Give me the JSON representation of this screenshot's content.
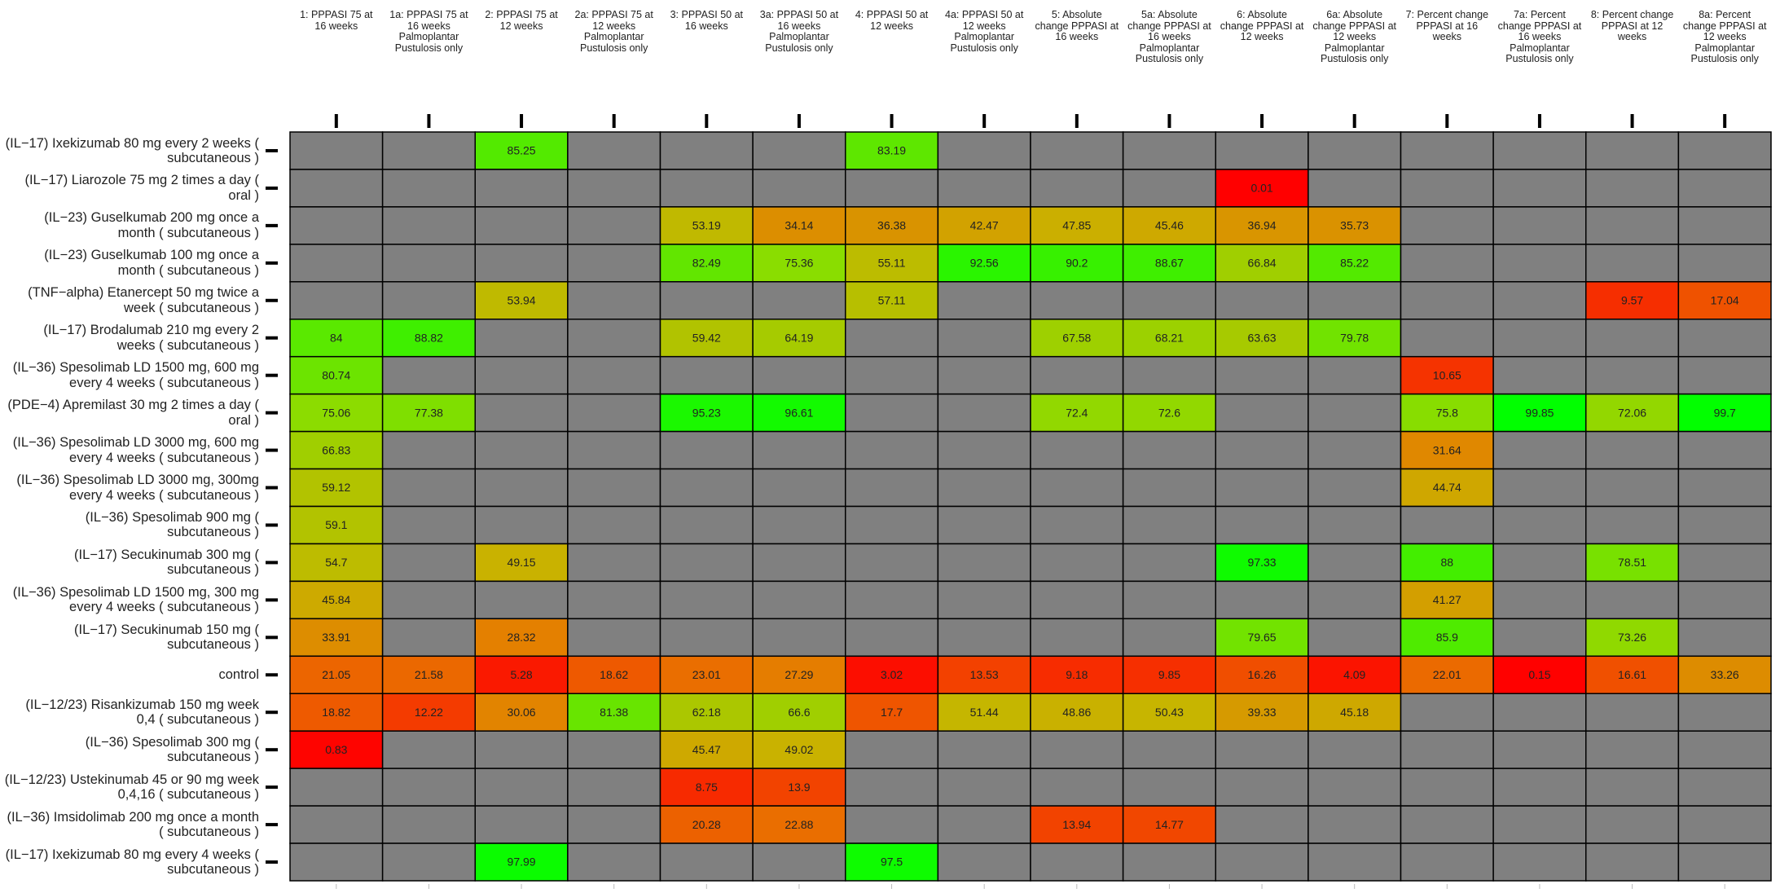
{
  "chart_data": {
    "type": "heatmap",
    "x": [
      "1: PPPASI 75 at 16 weeks",
      "1a: PPPASI 75 at 16 weeks Palmoplantar Pustulosis only",
      "2: PPPASI 75 at 12 weeks",
      "2a: PPPASI 75 at 12 weeks Palmoplantar Pustulosis only",
      "3: PPPASI 50 at 16 weeks",
      "3a: PPPASI 50 at 16 weeks Palmoplantar Pustulosis only",
      "4: PPPASI 50 at 12 weeks",
      "4a: PPPASI 50 at 12 weeks Palmoplantar Pustulosis only",
      "5: Absolute change PPPASI at 16 weeks",
      "5a: Absolute change PPPASI at 16 weeks Palmoplantar Pustulosis only",
      "6: Absolute change PPPASI at 12 weeks",
      "6a: Absolute change PPPASI at 12 weeks Palmoplantar Pustulosis only",
      "7: Percent change PPPASI at 16 weeks",
      "7a: Percent change PPPASI at 16 weeks Palmoplantar Pustulosis only",
      "8: Percent change PPPASI at 12 weeks",
      "8a: Percent change PPPASI at 12 weeks Palmoplantar Pustulosis only"
    ],
    "y": [
      "(IL−17) Ixekizumab 80 mg every 2 weeks ( subcutaneous )",
      "(IL−17) Liarozole 75 mg 2 times a day ( oral )",
      "(IL−23) Guselkumab 200 mg once a month ( subcutaneous )",
      "(IL−23) Guselkumab 100 mg once a month ( subcutaneous )",
      "(TNF−alpha) Etanercept 50 mg twice a week ( subcutaneous )",
      "(IL−17) Brodalumab 210 mg every 2 weeks ( subcutaneous )",
      "(IL−36) Spesolimab LD 1500 mg, 600 mg every 4 weeks ( subcutaneous )",
      "(PDE−4) Apremilast 30 mg 2 times a day ( oral )",
      "(IL−36) Spesolimab LD 3000 mg, 600 mg every 4 weeks ( subcutaneous )",
      "(IL−36) Spesolimab LD 3000 mg, 300mg every 4 weeks ( subcutaneous )",
      "(IL−36) Spesolimab 900 mg ( subcutaneous )",
      "(IL−17) Secukinumab 300 mg ( subcutaneous )",
      "(IL−36) Spesolimab LD 1500 mg, 300 mg every 4 weeks ( subcutaneous )",
      "(IL−17) Secukinumab 150 mg ( subcutaneous )",
      "control",
      "(IL−12/23) Risankizumab 150 mg week 0,4 ( subcutaneous )",
      "(IL−36) Spesolimab 300 mg ( subcutaneous )",
      "(IL−12/23) Ustekinumab 45 or 90 mg week 0,4,16 ( subcutaneous )",
      "(IL−36) Imsidolimab 200 mg once a month ( subcutaneous )",
      "(IL−17) Ixekizumab 80 mg every 4 weeks ( subcutaneous )"
    ],
    "values": [
      [
        null,
        null,
        85.25,
        null,
        null,
        null,
        83.19,
        null,
        null,
        null,
        null,
        null,
        null,
        null,
        null,
        null
      ],
      [
        null,
        null,
        null,
        null,
        null,
        null,
        null,
        null,
        null,
        null,
        0.01,
        null,
        null,
        null,
        null,
        null
      ],
      [
        null,
        null,
        null,
        null,
        53.19,
        34.14,
        36.38,
        42.47,
        47.85,
        45.46,
        36.94,
        35.73,
        null,
        null,
        null,
        null
      ],
      [
        null,
        null,
        null,
        null,
        82.49,
        75.36,
        55.11,
        92.56,
        90.2,
        88.67,
        66.84,
        85.22,
        null,
        null,
        null,
        null
      ],
      [
        null,
        null,
        53.94,
        null,
        null,
        null,
        57.11,
        null,
        null,
        null,
        null,
        null,
        null,
        null,
        9.57,
        17.04
      ],
      [
        84,
        88.82,
        null,
        null,
        59.42,
        64.19,
        null,
        null,
        67.58,
        68.21,
        63.63,
        79.78,
        null,
        null,
        null,
        null
      ],
      [
        80.74,
        null,
        null,
        null,
        null,
        null,
        null,
        null,
        null,
        null,
        null,
        null,
        10.65,
        null,
        null,
        null
      ],
      [
        75.06,
        77.38,
        null,
        null,
        95.23,
        96.61,
        null,
        null,
        72.4,
        72.6,
        null,
        null,
        75.8,
        99.85,
        72.06,
        99.7
      ],
      [
        66.83,
        null,
        null,
        null,
        null,
        null,
        null,
        null,
        null,
        null,
        null,
        null,
        31.64,
        null,
        null,
        null
      ],
      [
        59.12,
        null,
        null,
        null,
        null,
        null,
        null,
        null,
        null,
        null,
        null,
        null,
        44.74,
        null,
        null,
        null
      ],
      [
        59.1,
        null,
        null,
        null,
        null,
        null,
        null,
        null,
        null,
        null,
        null,
        null,
        null,
        null,
        null,
        null
      ],
      [
        54.7,
        null,
        49.15,
        null,
        null,
        null,
        null,
        null,
        null,
        null,
        97.33,
        null,
        88,
        null,
        78.51,
        null
      ],
      [
        45.84,
        null,
        null,
        null,
        null,
        null,
        null,
        null,
        null,
        null,
        null,
        null,
        41.27,
        null,
        null,
        null
      ],
      [
        33.91,
        null,
        28.32,
        null,
        null,
        null,
        null,
        null,
        null,
        null,
        79.65,
        null,
        85.9,
        null,
        73.26,
        null
      ],
      [
        21.05,
        21.58,
        5.28,
        18.62,
        23.01,
        27.29,
        3.02,
        13.53,
        9.18,
        9.85,
        16.26,
        4.09,
        22.01,
        0.15,
        16.61,
        33.26
      ],
      [
        18.82,
        12.22,
        30.06,
        81.38,
        62.18,
        66.6,
        17.7,
        51.44,
        48.86,
        50.43,
        39.33,
        45.18,
        null,
        null,
        null,
        null
      ],
      [
        0.83,
        null,
        null,
        null,
        45.47,
        49.02,
        null,
        null,
        null,
        null,
        null,
        null,
        null,
        null,
        null,
        null
      ],
      [
        null,
        null,
        null,
        null,
        8.75,
        13.9,
        null,
        null,
        null,
        null,
        null,
        null,
        null,
        null,
        null,
        null
      ],
      [
        null,
        null,
        null,
        null,
        20.28,
        22.88,
        null,
        null,
        13.94,
        14.77,
        null,
        null,
        null,
        null,
        null,
        null
      ],
      [
        null,
        null,
        97.99,
        null,
        null,
        null,
        97.5,
        null,
        null,
        null,
        null,
        null,
        null,
        null,
        null,
        null
      ]
    ],
    "color_stops": [
      {
        "value": 0,
        "color": "#ff0000"
      },
      {
        "value": 25,
        "color": "#e87800"
      },
      {
        "value": 50,
        "color": "#c8b400"
      },
      {
        "value": 75,
        "color": "#8cdc00"
      },
      {
        "value": 100,
        "color": "#00ff00"
      }
    ],
    "missing_color": "#808080"
  }
}
